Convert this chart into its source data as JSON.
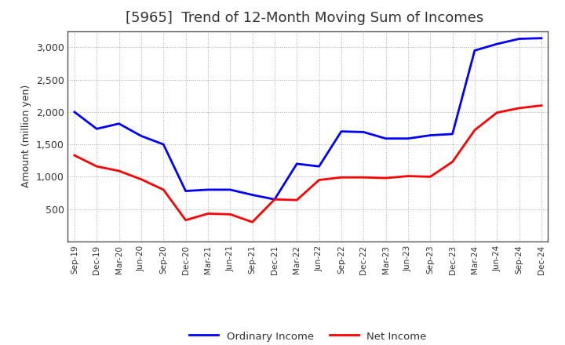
{
  "title": "[5965]  Trend of 12-Month Moving Sum of Incomes",
  "ylabel": "Amount (million yen)",
  "x_labels": [
    "Sep-19",
    "Dec-19",
    "Mar-20",
    "Jun-20",
    "Sep-20",
    "Dec-20",
    "Mar-21",
    "Jun-21",
    "Sep-21",
    "Dec-21",
    "Mar-22",
    "Jun-22",
    "Sep-22",
    "Dec-22",
    "Mar-23",
    "Jun-23",
    "Sep-23",
    "Dec-23",
    "Mar-24",
    "Jun-24",
    "Sep-24",
    "Dec-24"
  ],
  "ordinary_income": [
    2000,
    1740,
    1820,
    1630,
    1500,
    780,
    800,
    800,
    720,
    650,
    1200,
    1160,
    1700,
    1690,
    1590,
    1590,
    1640,
    1660,
    2950,
    3050,
    3130,
    3140
  ],
  "net_income": [
    1330,
    1160,
    1090,
    960,
    800,
    330,
    430,
    420,
    300,
    650,
    640,
    950,
    990,
    990,
    980,
    1010,
    1000,
    1230,
    1720,
    1990,
    2060,
    2100
  ],
  "ordinary_color": "#0000ff",
  "net_color": "#ff0000",
  "ylim": [
    0,
    3250
  ],
  "yticks": [
    500,
    1000,
    1500,
    2000,
    2500,
    3000
  ],
  "background_color": "#ffffff",
  "grid_color": "#999999",
  "title_fontsize": 13,
  "title_color": "#333333",
  "legend_labels": [
    "Ordinary Income",
    "Net Income"
  ],
  "tick_label_color": "#333333"
}
